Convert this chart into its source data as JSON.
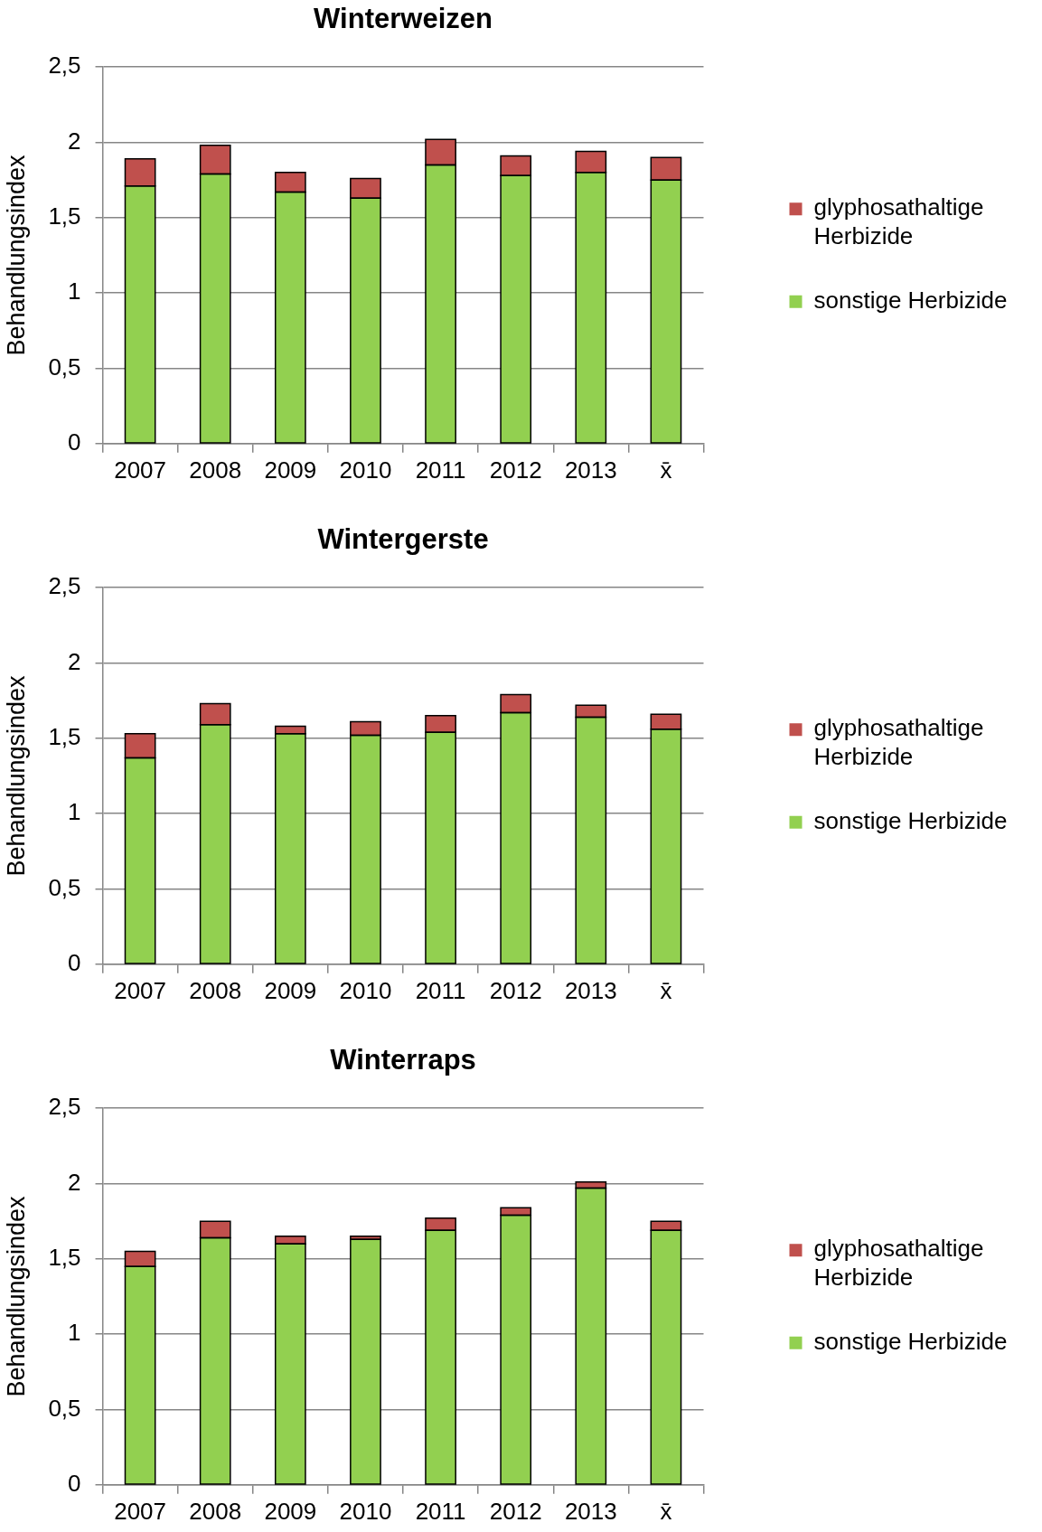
{
  "chart_data": [
    {
      "type": "bar",
      "title": "Winterweizen",
      "ylabel": "Behandlungsindex",
      "categories": [
        "2007",
        "2008",
        "2009",
        "2010",
        "2011",
        "2012",
        "2013",
        "x̄"
      ],
      "stacked": true,
      "series": [
        {
          "name": "sonstige Herbizide",
          "color": "#92d050",
          "values": [
            1.71,
            1.79,
            1.67,
            1.63,
            1.85,
            1.78,
            1.8,
            1.75
          ]
        },
        {
          "name": "glyphosathaltige Herbizide",
          "color": "#c0504d",
          "values": [
            0.18,
            0.19,
            0.13,
            0.13,
            0.17,
            0.13,
            0.14,
            0.15
          ]
        }
      ],
      "ylim": [
        0,
        2.5
      ],
      "yticks": [
        0,
        {
          "value": 0.5,
          "label": "0,5"
        },
        1,
        {
          "value": 1.5,
          "label": "1,5"
        },
        2,
        {
          "value": 2.5,
          "label": "2,5"
        }
      ],
      "grid": "y",
      "legend": "right"
    },
    {
      "type": "bar",
      "title": "Wintergerste",
      "ylabel": "Behandlungsindex",
      "categories": [
        "2007",
        "2008",
        "2009",
        "2010",
        "2011",
        "2012",
        "2013",
        "x̄"
      ],
      "stacked": true,
      "series": [
        {
          "name": "sonstige Herbizide",
          "color": "#92d050",
          "values": [
            1.37,
            1.59,
            1.53,
            1.52,
            1.54,
            1.67,
            1.64,
            1.56
          ]
        },
        {
          "name": "glyphosathaltige Herbizide",
          "color": "#c0504d",
          "values": [
            0.16,
            0.14,
            0.05,
            0.09,
            0.11,
            0.12,
            0.08,
            0.1
          ]
        }
      ],
      "ylim": [
        0,
        2.5
      ],
      "yticks": [
        0,
        {
          "value": 0.5,
          "label": "0,5"
        },
        1,
        {
          "value": 1.5,
          "label": "1,5"
        },
        2,
        {
          "value": 2.5,
          "label": "2,5"
        }
      ],
      "grid": "y",
      "legend": "right"
    },
    {
      "type": "bar",
      "title": "Winterraps",
      "ylabel": "Behandlungsindex",
      "categories": [
        "2007",
        "2008",
        "2009",
        "2010",
        "2011",
        "2012",
        "2013",
        "x̄"
      ],
      "stacked": true,
      "series": [
        {
          "name": "sonstige Herbizide",
          "color": "#92d050",
          "values": [
            1.45,
            1.64,
            1.6,
            1.63,
            1.69,
            1.79,
            1.97,
            1.69
          ]
        },
        {
          "name": "glyphosathaltige Herbizide",
          "color": "#c0504d",
          "values": [
            0.1,
            0.11,
            0.05,
            0.02,
            0.08,
            0.05,
            0.04,
            0.06
          ]
        }
      ],
      "ylim": [
        0,
        2.5
      ],
      "yticks": [
        0,
        {
          "value": 0.5,
          "label": "0,5"
        },
        1,
        {
          "value": 1.5,
          "label": "1,5"
        },
        2,
        {
          "value": 2.5,
          "label": "2,5"
        }
      ],
      "grid": "y",
      "legend": "right"
    }
  ]
}
